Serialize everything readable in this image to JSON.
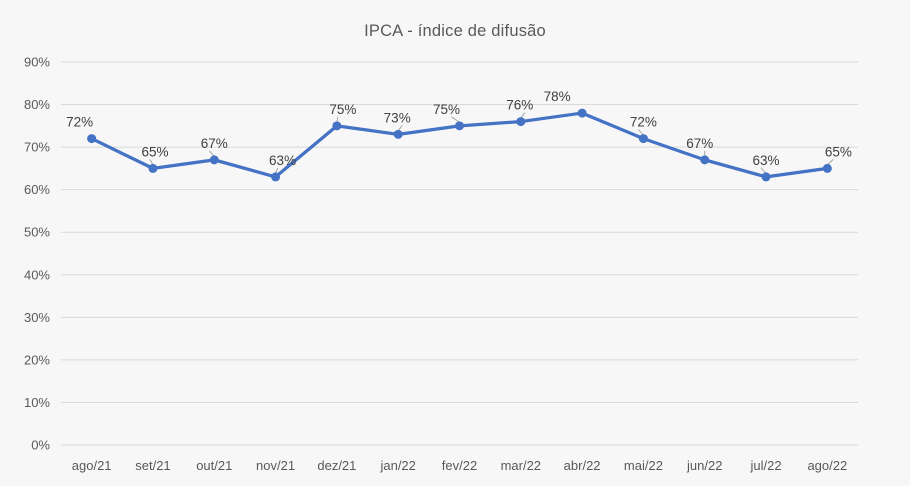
{
  "chart_data": {
    "type": "line",
    "title": "IPCA - índice de difusão",
    "categories": [
      "ago/21",
      "set/21",
      "out/21",
      "nov/21",
      "dez/21",
      "jan/22",
      "fev/22",
      "mar/22",
      "abr/22",
      "mai/22",
      "jun/22",
      "jul/22",
      "ago/22"
    ],
    "values": [
      72,
      65,
      67,
      63,
      75,
      73,
      75,
      76,
      78,
      72,
      67,
      63,
      65
    ],
    "data_labels": [
      "72%",
      "65%",
      "67%",
      "63%",
      "75%",
      "73%",
      "75%",
      "76%",
      "78%",
      "72%",
      "67%",
      "63%",
      "65%"
    ],
    "xlabel": "",
    "ylabel": "",
    "ylim": [
      0,
      90
    ],
    "ytick_step": 10,
    "ytick_labels": [
      "0%",
      "10%",
      "20%",
      "30%",
      "40%",
      "50%",
      "60%",
      "70%",
      "80%",
      "90%"
    ],
    "grid": true,
    "legend": false,
    "colors": {
      "background": "#F7F7F7",
      "line": "#4472C4",
      "marker": "#4472C4",
      "gridline": "#D9D9D9",
      "axis_text": "#595959",
      "title_text": "#595959",
      "data_label_text": "#404040",
      "leader_line": "#A6A6A6"
    },
    "layout_hints": {
      "label_dx": [
        -12,
        2,
        0,
        7,
        6,
        -1,
        -13,
        -1,
        -25,
        0,
        -5,
        0,
        11
      ],
      "label_leader": [
        false,
        true,
        true,
        true,
        true,
        true,
        true,
        true,
        false,
        true,
        true,
        true,
        true
      ],
      "legend_position": "none"
    }
  }
}
